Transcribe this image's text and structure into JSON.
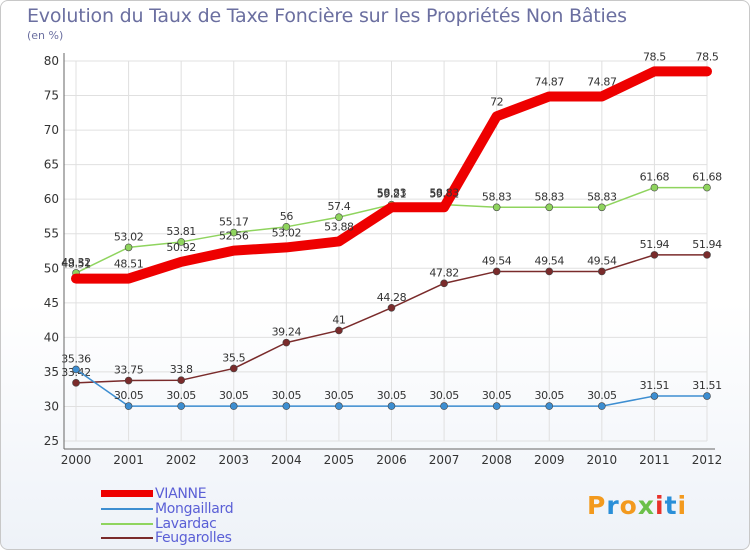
{
  "header": {
    "title": "Evolution du Taux de Taxe Foncière sur les Propriétés Non Bâties",
    "unit": "(en %)"
  },
  "logo": {
    "letters": [
      "P",
      "r",
      "o",
      "x",
      "i",
      "t",
      "i"
    ]
  },
  "chart_data": {
    "type": "line",
    "title": "Evolution du Taux de Taxe Foncière sur les Propriétés Non Bâties",
    "ylabel": "(en %)",
    "xlabel": "",
    "ylim": [
      25,
      80
    ],
    "yticks": [
      25,
      30,
      35,
      40,
      45,
      50,
      55,
      60,
      65,
      70,
      75,
      80
    ],
    "categories": [
      "2000",
      "2001",
      "2002",
      "2003",
      "2004",
      "2005",
      "2006",
      "2007",
      "2008",
      "2009",
      "2010",
      "2011",
      "2012"
    ],
    "grid": true,
    "legend_position": "bottom-left",
    "series": [
      {
        "name": "Feugarolles",
        "color": "#7a2b2b",
        "values": [
          33.42,
          33.75,
          33.8,
          35.5,
          39.24,
          41,
          44.28,
          47.82,
          49.54,
          49.54,
          49.54,
          51.94,
          51.94
        ],
        "labels": [
          "33.42",
          "33.75",
          "33.8",
          "35.5",
          "39.24",
          "41",
          "44.28",
          "47.82",
          "49.54",
          "49.54",
          "49.54",
          "51.94",
          "51.94"
        ]
      },
      {
        "name": "Mongaillard",
        "color": "#3d8ed1",
        "values": [
          35.36,
          30.05,
          30.05,
          30.05,
          30.05,
          30.05,
          30.05,
          30.05,
          30.05,
          30.05,
          30.05,
          31.51,
          31.51
        ],
        "labels": [
          "35.36",
          "30.05",
          "30.05",
          "30.05",
          "30.05",
          "30.05",
          "30.05",
          "30.05",
          "30.05",
          "30.05",
          "30.05",
          "31.51",
          "31.51"
        ]
      },
      {
        "name": "Lavardac",
        "color": "#8fd45e",
        "values": [
          49.32,
          53.02,
          53.81,
          55.17,
          56,
          57.4,
          59.21,
          59.21,
          58.83,
          58.83,
          58.83,
          61.68,
          61.68
        ],
        "labels": [
          "49.32",
          "53.02",
          "53.81",
          "55.17",
          "56",
          "57.4",
          "59.21",
          "59.21",
          "58.83",
          "58.83",
          "58.83",
          "61.68",
          "61.68"
        ]
      },
      {
        "name": "VIANNE",
        "color": "#ee0000",
        "values": [
          48.51,
          48.51,
          50.92,
          52.56,
          53.02,
          53.88,
          58.83,
          58.83,
          72,
          74.87,
          74.87,
          78.5,
          78.5
        ],
        "labels": [
          "48.51",
          "48.51",
          "50.92",
          "52.56",
          "53.02",
          "53.88",
          "58.83",
          "58.83",
          "72",
          "74.87",
          "74.87",
          "78.5",
          "78.5"
        ]
      }
    ],
    "legend": [
      "VIANNE",
      "Mongaillard",
      "Lavardac",
      "Feugarolles"
    ]
  }
}
